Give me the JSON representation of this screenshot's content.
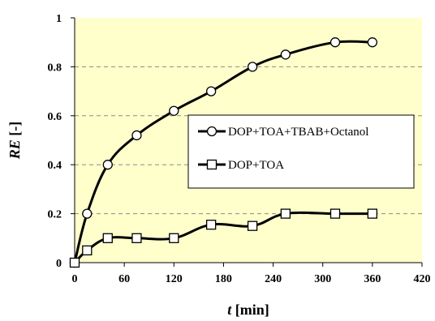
{
  "chart_data": {
    "type": "line",
    "title": "",
    "xlabel": {
      "italic": "t",
      "unit": " [min]"
    },
    "ylabel": {
      "italic": "RE",
      "unit": " [-]"
    },
    "xlim": [
      0,
      420
    ],
    "ylim": [
      0,
      1
    ],
    "xticks": [
      "0",
      "60",
      "120",
      "180",
      "240",
      "300",
      "360",
      "420"
    ],
    "xtick_values": [
      0,
      60,
      120,
      180,
      240,
      300,
      360,
      420
    ],
    "yticks": [
      "0",
      "0.2",
      "0.4",
      "0.6",
      "0.8",
      "1"
    ],
    "ytick_values": [
      0,
      0.2,
      0.4,
      0.6,
      0.8,
      1
    ],
    "grid": "horizontal dashed",
    "legend_position": "right",
    "plot_background": "#ffffcc",
    "series": [
      {
        "name": "DOP+TOA+TBAB+Octanol",
        "marker": "circle",
        "x": [
          0,
          15,
          40,
          75,
          120,
          165,
          215,
          255,
          315,
          360
        ],
        "y": [
          0,
          0.2,
          0.4,
          0.52,
          0.62,
          0.7,
          0.8,
          0.85,
          0.9,
          0.9
        ]
      },
      {
        "name": "DOP+TOA",
        "marker": "square",
        "x": [
          0,
          15,
          40,
          75,
          120,
          165,
          215,
          255,
          315,
          360
        ],
        "y": [
          0,
          0.05,
          0.1,
          0.1,
          0.1,
          0.155,
          0.15,
          0.2,
          0.2,
          0.2
        ]
      }
    ]
  }
}
